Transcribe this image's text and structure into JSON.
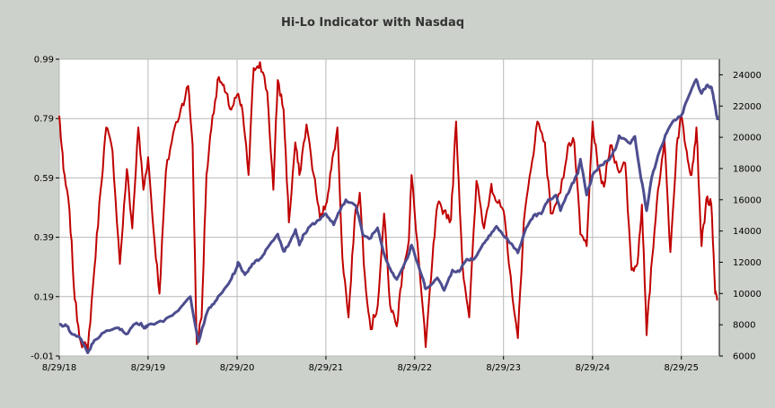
{
  "chart_data": {
    "type": "line",
    "title": "Hi-Lo Indicator with Nasdaq",
    "x_ticks": [
      "8/29/18",
      "8/29/19",
      "8/29/20",
      "8/29/21",
      "8/29/22",
      "8/29/23",
      "8/29/24",
      "8/29/25"
    ],
    "x_range": [
      "8/29/18",
      "2/01/26"
    ],
    "y_left": {
      "ticks": [
        "-0.01",
        "0.19",
        "0.39",
        "0.59",
        "0.79",
        "0.99"
      ],
      "range": [
        -0.01,
        0.99
      ]
    },
    "y_right": {
      "ticks": [
        "6000",
        "8000",
        "10000",
        "12000",
        "14000",
        "16000",
        "18000",
        "20000",
        "22000",
        "24000"
      ],
      "range": [
        6000,
        25000
      ]
    },
    "grid": true,
    "series": [
      {
        "axis": "left",
        "color": "#c00000",
        "x": [
          "2018-08-29",
          "2018-09-15",
          "2018-10-10",
          "2018-11-01",
          "2018-11-25",
          "2018-12-24",
          "2019-01-20",
          "2019-02-15",
          "2019-03-10",
          "2019-04-05",
          "2019-05-05",
          "2019-06-03",
          "2019-06-25",
          "2019-07-20",
          "2019-08-10",
          "2019-08-29",
          "2019-09-20",
          "2019-10-15",
          "2019-11-10",
          "2019-12-10",
          "2020-01-10",
          "2020-02-10",
          "2020-02-28",
          "2020-03-16",
          "2020-04-05",
          "2020-04-25",
          "2020-05-20",
          "2020-06-15",
          "2020-07-10",
          "2020-08-05",
          "2020-08-29",
          "2020-09-21",
          "2020-10-15",
          "2020-11-05",
          "2020-12-01",
          "2020-12-31",
          "2021-01-25",
          "2021-02-12",
          "2021-03-08",
          "2021-03-30",
          "2021-04-25",
          "2021-05-12",
          "2021-06-10",
          "2021-07-10",
          "2021-08-05",
          "2021-08-29",
          "2021-09-20",
          "2021-10-15",
          "2021-11-05",
          "2021-11-30",
          "2021-12-25",
          "2022-01-15",
          "2022-02-05",
          "2022-03-01",
          "2022-03-30",
          "2022-04-25",
          "2022-05-20",
          "2022-06-16",
          "2022-07-10",
          "2022-08-05",
          "2022-08-16",
          "2022-09-15",
          "2022-10-13",
          "2022-11-10",
          "2022-12-01",
          "2022-12-28",
          "2023-01-25",
          "2023-02-15",
          "2023-03-13",
          "2023-04-10",
          "2023-05-10",
          "2023-06-10",
          "2023-07-10",
          "2023-07-31",
          "2023-08-29",
          "2023-09-20",
          "2023-10-27",
          "2023-11-20",
          "2023-12-20",
          "2024-01-15",
          "2024-02-15",
          "2024-03-10",
          "2024-04-19",
          "2024-05-20",
          "2024-06-15",
          "2024-07-10",
          "2024-08-05",
          "2024-08-29",
          "2024-09-20",
          "2024-10-15",
          "2024-11-10",
          "2024-12-10",
          "2025-01-10",
          "2025-02-05",
          "2025-03-01",
          "2025-03-20",
          "2025-04-08",
          "2025-05-01",
          "2025-05-25",
          "2025-06-20",
          "2025-07-15",
          "2025-08-10",
          "2025-08-29",
          "2025-09-20",
          "2025-10-10",
          "2025-10-30",
          "2025-11-20",
          "2025-12-10",
          "2025-12-30",
          "2026-01-15",
          "2026-01-25"
        ],
        "y": [
          0.8,
          0.62,
          0.48,
          0.18,
          0.04,
          0.01,
          0.28,
          0.55,
          0.76,
          0.68,
          0.3,
          0.62,
          0.42,
          0.76,
          0.55,
          0.66,
          0.42,
          0.2,
          0.61,
          0.74,
          0.82,
          0.9,
          0.7,
          0.03,
          0.12,
          0.6,
          0.8,
          0.93,
          0.88,
          0.82,
          0.87,
          0.81,
          0.6,
          0.96,
          0.98,
          0.88,
          0.55,
          0.92,
          0.82,
          0.44,
          0.71,
          0.6,
          0.77,
          0.6,
          0.45,
          0.5,
          0.62,
          0.76,
          0.32,
          0.12,
          0.45,
          0.54,
          0.26,
          0.08,
          0.16,
          0.47,
          0.16,
          0.09,
          0.28,
          0.38,
          0.6,
          0.31,
          0.02,
          0.32,
          0.5,
          0.48,
          0.45,
          0.78,
          0.3,
          0.12,
          0.58,
          0.42,
          0.57,
          0.51,
          0.48,
          0.3,
          0.05,
          0.44,
          0.62,
          0.78,
          0.71,
          0.47,
          0.54,
          0.7,
          0.71,
          0.4,
          0.36,
          0.78,
          0.62,
          0.56,
          0.7,
          0.62,
          0.64,
          0.28,
          0.3,
          0.5,
          0.06,
          0.32,
          0.55,
          0.72,
          0.34,
          0.7,
          0.8,
          0.68,
          0.6,
          0.76,
          0.36,
          0.52,
          0.5,
          0.2,
          0.18
        ]
      },
      {
        "axis": "right",
        "color": "#4d4d8f",
        "x": [
          "2018-08-29",
          "2018-09-30",
          "2018-10-20",
          "2018-11-20",
          "2018-12-24",
          "2019-01-20",
          "2019-02-28",
          "2019-04-30",
          "2019-05-31",
          "2019-06-30",
          "2019-07-31",
          "2019-08-15",
          "2019-08-29",
          "2019-10-31",
          "2019-12-31",
          "2020-02-19",
          "2020-03-23",
          "2020-04-30",
          "2020-05-31",
          "2020-06-30",
          "2020-07-31",
          "2020-08-29",
          "2020-09-02",
          "2020-09-30",
          "2020-10-31",
          "2020-11-30",
          "2020-12-31",
          "2021-02-12",
          "2021-03-08",
          "2021-03-31",
          "2021-04-26",
          "2021-05-12",
          "2021-05-31",
          "2021-06-30",
          "2021-07-31",
          "2021-08-29",
          "2021-09-30",
          "2021-10-31",
          "2021-11-19",
          "2021-12-31",
          "2022-01-27",
          "2022-02-23",
          "2022-03-29",
          "2022-04-30",
          "2022-05-20",
          "2022-06-16",
          "2022-07-31",
          "2022-08-16",
          "2022-09-30",
          "2022-10-13",
          "2022-11-30",
          "2022-12-28",
          "2023-01-31",
          "2023-02-28",
          "2023-03-31",
          "2023-04-30",
          "2023-05-31",
          "2023-06-30",
          "2023-07-31",
          "2023-08-29",
          "2023-09-30",
          "2023-10-27",
          "2023-11-30",
          "2023-12-31",
          "2024-01-31",
          "2024-02-29",
          "2024-03-31",
          "2024-04-19",
          "2024-05-31",
          "2024-06-30",
          "2024-07-10",
          "2024-08-05",
          "2024-08-29",
          "2024-09-30",
          "2024-10-31",
          "2024-11-30",
          "2024-12-16",
          "2025-01-31",
          "2025-02-19",
          "2025-03-10",
          "2025-04-08",
          "2025-04-30",
          "2025-05-31",
          "2025-06-30",
          "2025-07-31",
          "2025-08-29",
          "2025-09-30",
          "2025-10-29",
          "2025-11-20",
          "2025-12-10",
          "2025-12-31",
          "2026-01-15",
          "2026-01-25"
        ],
        "y": [
          8000,
          7900,
          7400,
          7200,
          6200,
          7000,
          7500,
          7800,
          7400,
          8000,
          8100,
          7800,
          8000,
          8200,
          8900,
          9800,
          6900,
          8900,
          9500,
          10100,
          10800,
          11700,
          12000,
          11200,
          11900,
          12200,
          12900,
          13800,
          12700,
          13200,
          14100,
          13100,
          13800,
          14400,
          14700,
          15100,
          14400,
          15500,
          16000,
          15600,
          13800,
          13500,
          14200,
          12300,
          11600,
          10900,
          12300,
          13100,
          11000,
          10300,
          11000,
          10200,
          11500,
          11400,
          12200,
          12200,
          13000,
          13700,
          14300,
          13700,
          13200,
          12600,
          14200,
          15000,
          15100,
          16000,
          16300,
          15300,
          16800,
          17700,
          18600,
          16300,
          17600,
          18200,
          18500,
          19200,
          20100,
          19600,
          20050,
          18000,
          15300,
          17500,
          19100,
          20300,
          21100,
          21400,
          22700,
          23700,
          22800,
          23300,
          23200,
          22000,
          21100
        ]
      }
    ]
  }
}
